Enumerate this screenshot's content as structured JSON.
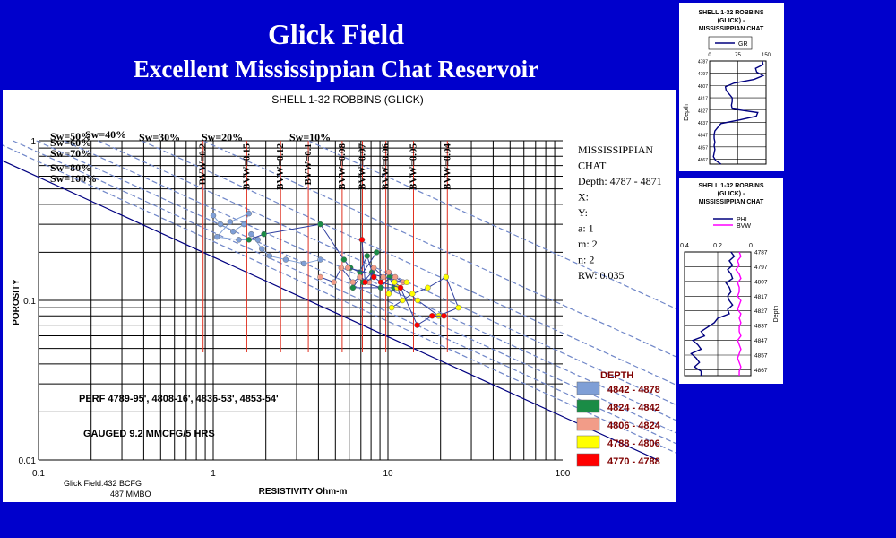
{
  "header": {
    "title": "Glick Field",
    "subtitle": "Excellent Mississippian Chat Reservoir"
  },
  "chart_data": {
    "type": "scatter",
    "title": "SHELL 1-32 ROBBINS (GLICK)",
    "xlabel": "RESISTIVITY Ohm-m",
    "ylabel": "POROSITY",
    "xscale": "log",
    "yscale": "log",
    "xlim": [
      0.1,
      100
    ],
    "ylim": [
      0.01,
      1
    ],
    "xticks": [
      "0.1",
      "1",
      "10",
      "100"
    ],
    "yticks": [
      "0.01",
      "0.1",
      "1"
    ],
    "sw_lines": [
      {
        "label": "Sw=100%",
        "sw": 1.0
      },
      {
        "label": "Sw=80%",
        "sw": 0.8
      },
      {
        "label": "Sw=70%",
        "sw": 0.7
      },
      {
        "label": "Sw=60%",
        "sw": 0.6
      },
      {
        "label": "Sw=50%",
        "sw": 0.5
      },
      {
        "label": "Sw=40%",
        "sw": 0.4
      },
      {
        "label": "Sw=30%",
        "sw": 0.3
      },
      {
        "label": "Sw=20%",
        "sw": 0.2
      },
      {
        "label": "Sw=10%",
        "sw": 0.1
      }
    ],
    "bvw_lines": [
      {
        "label": "BVW=0.2",
        "bvw": 0.2
      },
      {
        "label": "BVW=0.15",
        "bvw": 0.15
      },
      {
        "label": "BVW=0.12",
        "bvw": 0.12
      },
      {
        "label": "BVW=0.1",
        "bvw": 0.1
      },
      {
        "label": "BVW=0.08",
        "bvw": 0.08
      },
      {
        "label": "BVW=0.07",
        "bvw": 0.07
      },
      {
        "label": "BVW=0.06",
        "bvw": 0.06
      },
      {
        "label": "BVW=0.05",
        "bvw": 0.05
      },
      {
        "label": "BVW=0.04",
        "bvw": 0.04
      }
    ],
    "params": [
      "MISSISSIPPIAN",
      "CHAT",
      "Depth: 4787 - 4871",
      "X:",
      "Y:",
      "a: 1",
      "m: 2",
      "n: 2",
      "RW: 0.035"
    ],
    "annotations": [
      "PERF 4789-95',  4808-16',  4836-53',  4853-54'",
      "GAUGED 9.2 MMCFG/5 HRS",
      "Glick Field:432 BCFG",
      "487 MMBO"
    ],
    "legend_title": "DEPTH",
    "series": [
      {
        "name": "4842 - 4878",
        "color": "#7f9fd6",
        "points": [
          [
            1.0,
            0.34
          ],
          [
            1.1,
            0.3
          ],
          [
            1.3,
            0.27
          ],
          [
            1.5,
            0.3
          ],
          [
            1.6,
            0.35
          ],
          [
            1.25,
            0.31
          ],
          [
            1.05,
            0.25
          ],
          [
            1.4,
            0.24
          ],
          [
            1.8,
            0.24
          ],
          [
            1.65,
            0.26
          ],
          [
            1.9,
            0.21
          ],
          [
            2.1,
            0.19
          ],
          [
            2.6,
            0.18
          ],
          [
            3.3,
            0.17
          ],
          [
            4.1,
            0.18
          ]
        ]
      },
      {
        "name": "4824 - 4842",
        "color": "#1a8c46",
        "points": [
          [
            1.6,
            0.24
          ],
          [
            1.95,
            0.26
          ],
          [
            4.1,
            0.3
          ],
          [
            5.6,
            0.18
          ],
          [
            6.1,
            0.16
          ],
          [
            6.9,
            0.15
          ],
          [
            7.6,
            0.19
          ],
          [
            8.1,
            0.15
          ],
          [
            7.2,
            0.13
          ],
          [
            9.1,
            0.12
          ],
          [
            10.2,
            0.14
          ],
          [
            10.8,
            0.12
          ],
          [
            6.3,
            0.12
          ],
          [
            8.6,
            0.2
          ]
        ]
      },
      {
        "name": "4806 - 4824",
        "color": "#f29c88",
        "points": [
          [
            4.1,
            0.14
          ],
          [
            4.9,
            0.13
          ],
          [
            5.4,
            0.16
          ],
          [
            6.3,
            0.13
          ],
          [
            6.9,
            0.14
          ],
          [
            7.8,
            0.13
          ],
          [
            8.3,
            0.16
          ],
          [
            9.4,
            0.14
          ],
          [
            10.1,
            0.15
          ],
          [
            11.0,
            0.14
          ],
          [
            12.2,
            0.13
          ],
          [
            5.9,
            0.16
          ]
        ]
      },
      {
        "name": "4788 - 4806",
        "color": "#ffff00",
        "points": [
          [
            10.1,
            0.11
          ],
          [
            11.3,
            0.12
          ],
          [
            12.1,
            0.1
          ],
          [
            10.5,
            0.09
          ],
          [
            13.8,
            0.11
          ],
          [
            16.9,
            0.12
          ],
          [
            21.5,
            0.14
          ],
          [
            25.3,
            0.09
          ],
          [
            19.5,
            0.08
          ],
          [
            14.8,
            0.1
          ],
          [
            10.9,
            0.13
          ],
          [
            12.8,
            0.13
          ]
        ]
      },
      {
        "name": "4770 - 4788",
        "color": "#ff0000",
        "points": [
          [
            7.1,
            0.24
          ],
          [
            7.4,
            0.13
          ],
          [
            8.3,
            0.14
          ],
          [
            9.1,
            0.13
          ],
          [
            11.8,
            0.12
          ],
          [
            14.7,
            0.07
          ],
          [
            17.9,
            0.08
          ],
          [
            20.9,
            0.08
          ]
        ]
      }
    ]
  },
  "gr_track": {
    "title_lines": [
      "SHELL 1-32 ROBBINS",
      "(GLICK) -",
      "MISSISSIPPIAN CHAT"
    ],
    "legend": "GR",
    "color": "#00007f",
    "axis_label": "Depth",
    "xlim": [
      0,
      150
    ],
    "xticks": [
      "0",
      "75",
      "150"
    ],
    "depth_labels": [
      "4787",
      "4797",
      "4807",
      "4817",
      "4827",
      "4837",
      "4847",
      "4857",
      "4867"
    ],
    "depths": [
      4787,
      4790,
      4793,
      4796,
      4799,
      4802,
      4805,
      4808,
      4811,
      4814,
      4817,
      4820,
      4823,
      4826,
      4829,
      4832,
      4835,
      4838,
      4841,
      4844,
      4847,
      4850,
      4853,
      4856,
      4859,
      4862,
      4865,
      4868,
      4871
    ],
    "values": [
      140,
      142,
      122,
      125,
      142,
      118,
      65,
      42,
      44,
      52,
      60,
      60,
      58,
      60,
      128,
      124,
      80,
      30,
      22,
      14,
      12,
      12,
      14,
      12,
      14,
      12,
      10,
      16,
      30
    ]
  },
  "phi_track": {
    "title_lines": [
      "SHELL 1-32 ROBBINS",
      "(GLICK) -",
      "MISSISSIPPIAN CHAT"
    ],
    "legend_phi": "PHI",
    "legend_bvw": "BVW",
    "phi_color": "#00007f",
    "bvw_color": "#ff00ff",
    "axis_label": "Depth",
    "xlim": [
      0.4,
      0
    ],
    "xticks": [
      "0.4",
      "0.2",
      "0"
    ],
    "depth_labels": [
      "4787",
      "4797",
      "4807",
      "4817",
      "4827",
      "4837",
      "4847",
      "4857",
      "4867"
    ],
    "depths": [
      4787,
      4790,
      4793,
      4796,
      4799,
      4802,
      4805,
      4808,
      4811,
      4814,
      4817,
      4820,
      4823,
      4826,
      4829,
      4832,
      4835,
      4838,
      4841,
      4844,
      4847,
      4850,
      4853,
      4856,
      4859,
      4862,
      4865,
      4868,
      4871
    ],
    "phi": [
      0.12,
      0.1,
      0.13,
      0.11,
      0.14,
      0.12,
      0.11,
      0.15,
      0.13,
      0.12,
      0.14,
      0.13,
      0.11,
      0.14,
      0.13,
      0.2,
      0.22,
      0.26,
      0.3,
      0.28,
      0.35,
      0.32,
      0.3,
      0.36,
      0.33,
      0.31,
      0.34,
      0.3,
      0.3
    ],
    "bvw": [
      0.07,
      0.06,
      0.08,
      0.07,
      0.09,
      0.07,
      0.06,
      0.08,
      0.07,
      0.07,
      0.08,
      0.06,
      0.07,
      0.08,
      0.06,
      0.07,
      0.06,
      0.07,
      0.07,
      0.06,
      0.08,
      0.07,
      0.06,
      0.07,
      0.08,
      0.07,
      0.06,
      0.07,
      0.07
    ]
  }
}
